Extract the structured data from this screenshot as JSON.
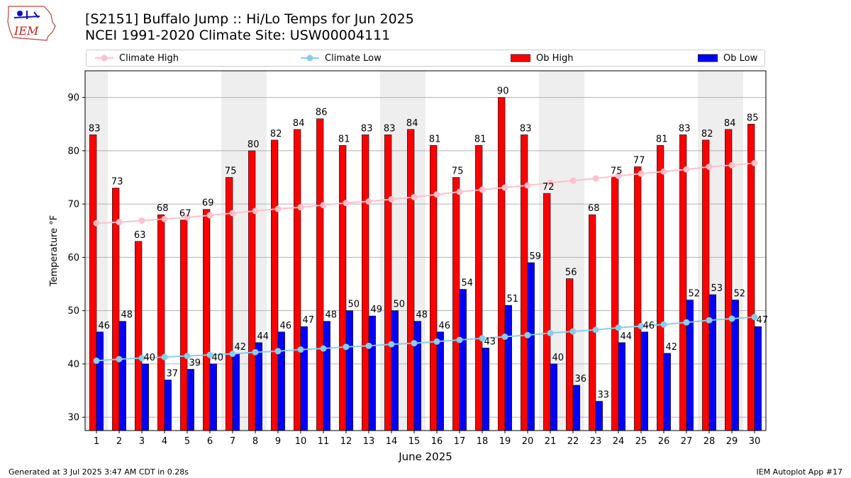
{
  "header": {
    "logo_text": "IEM",
    "title": "[S2151] Buffalo Jump :: Hi/Lo Temps for Jun 2025",
    "subtitle": "NCEI 1991-2020 Climate Site: USW00004111"
  },
  "legend": {
    "items": [
      {
        "label": "Climate High",
        "kind": "line",
        "color": "#ffc0cb"
      },
      {
        "label": "Climate Low",
        "kind": "line",
        "color": "#87ceeb"
      },
      {
        "label": "Ob High",
        "kind": "bar",
        "color": "#ff0000"
      },
      {
        "label": "Ob Low",
        "kind": "bar",
        "color": "#0000ff"
      }
    ]
  },
  "chart_data": {
    "type": "bar",
    "xlabel": "June 2025",
    "ylabel": "Temperature °F",
    "ylim": [
      27.5,
      95
    ],
    "yticks": [
      30,
      40,
      50,
      60,
      70,
      80,
      90
    ],
    "grid": true,
    "legend_position": "top",
    "weekend_shading_days": [
      1,
      7,
      8,
      14,
      15,
      21,
      22,
      28,
      29
    ],
    "categories": [
      "1",
      "2",
      "3",
      "4",
      "5",
      "6",
      "7",
      "8",
      "9",
      "10",
      "11",
      "12",
      "13",
      "14",
      "15",
      "16",
      "17",
      "18",
      "19",
      "20",
      "21",
      "22",
      "23",
      "24",
      "25",
      "26",
      "27",
      "28",
      "29",
      "30"
    ],
    "series": [
      {
        "name": "Ob High",
        "kind": "bar",
        "color": "#ff0000",
        "values": [
          83,
          73,
          63,
          68,
          67,
          69,
          75,
          80,
          82,
          84,
          86,
          81,
          83,
          83,
          84,
          81,
          75,
          81,
          90,
          83,
          72,
          56,
          68,
          75,
          77,
          81,
          83,
          82,
          84,
          85
        ]
      },
      {
        "name": "Ob Low",
        "kind": "bar",
        "color": "#0000ff",
        "values": [
          46,
          48,
          40,
          37,
          39,
          40,
          42,
          44,
          46,
          47,
          48,
          50,
          49,
          50,
          48,
          46,
          54,
          43,
          51,
          59,
          40,
          36,
          33,
          44,
          46,
          42,
          52,
          53,
          52,
          47
        ]
      },
      {
        "name": "Climate High",
        "kind": "line",
        "color": "#ffc0cb",
        "values": [
          66.4,
          66.6,
          66.9,
          67.2,
          67.5,
          67.9,
          68.3,
          68.7,
          69.1,
          69.4,
          69.8,
          70.2,
          70.5,
          70.9,
          71.3,
          71.8,
          72.3,
          72.7,
          73.1,
          73.5,
          74.0,
          74.4,
          74.8,
          75.3,
          75.7,
          76.1,
          76.5,
          77.0,
          77.3,
          77.7
        ]
      },
      {
        "name": "Climate Low",
        "kind": "line",
        "color": "#87ceeb",
        "values": [
          40.6,
          40.9,
          41.1,
          41.3,
          41.5,
          41.7,
          41.9,
          42.2,
          42.4,
          42.7,
          42.9,
          43.2,
          43.4,
          43.7,
          43.9,
          44.2,
          44.5,
          44.8,
          45.1,
          45.4,
          45.8,
          46.1,
          46.4,
          46.8,
          47.1,
          47.4,
          47.8,
          48.2,
          48.5,
          48.8
        ]
      }
    ]
  },
  "footer": {
    "left": "Generated at 3 Jul 2025 3:47 AM CDT in 0.28s",
    "right": "IEM Autoplot App #17"
  }
}
